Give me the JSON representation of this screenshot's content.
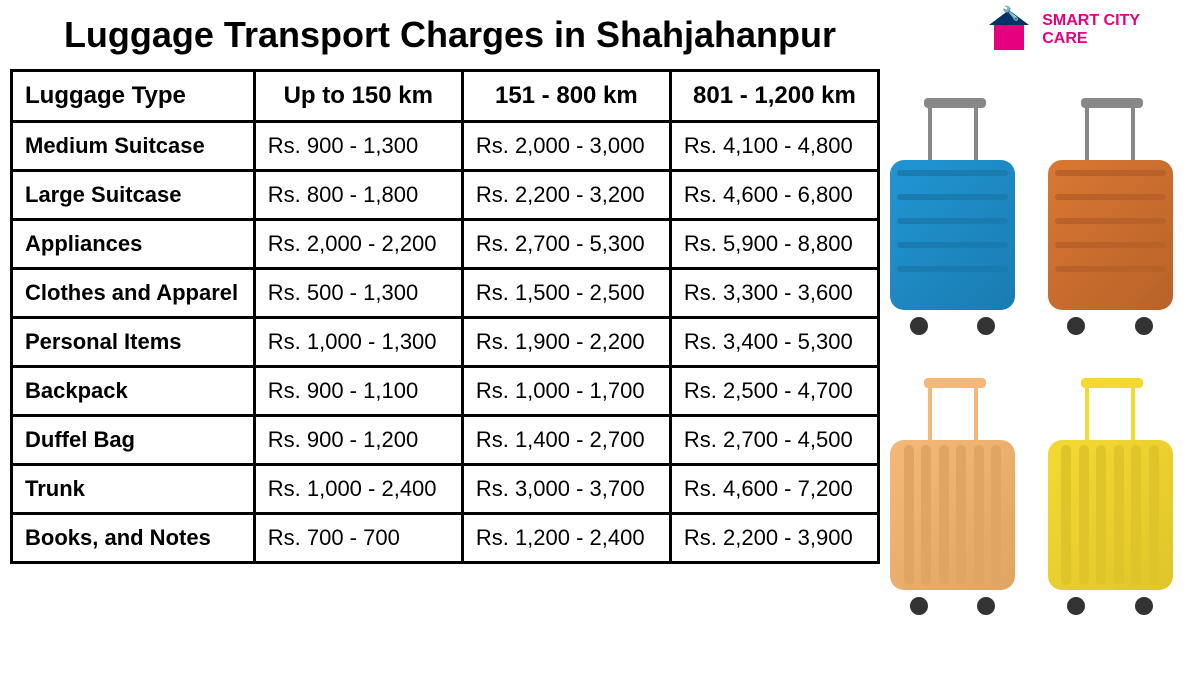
{
  "title": "Luggage Transport Charges in Shahjahanpur",
  "logo": {
    "text_line1": "SMART CITY",
    "text_line2": "CARE",
    "text_color": "#e6007e",
    "house_color": "#e6007e",
    "roof_color": "#003366"
  },
  "table": {
    "columns": [
      "Luggage Type",
      "Up to 150 km",
      "151 - 800 km",
      "801 - 1,200 km"
    ],
    "rows": [
      [
        "Medium Suitcase",
        "Rs. 900 - 1,300",
        "Rs. 2,000 - 3,000",
        "Rs. 4,100 - 4,800"
      ],
      [
        "Large Suitcase",
        "Rs. 800 - 1,800",
        "Rs. 2,200 - 3,200",
        "Rs. 4,600 - 6,800"
      ],
      [
        "Appliances",
        "Rs. 2,000 - 2,200",
        "Rs. 2,700 - 5,300",
        "Rs. 5,900 - 8,800"
      ],
      [
        "Clothes and Apparel",
        "Rs. 500 - 1,300",
        "Rs. 1,500 - 2,500",
        "Rs. 3,300 - 3,600"
      ],
      [
        "Personal Items",
        "Rs. 1,000 - 1,300",
        "Rs. 1,900 - 2,200",
        "Rs. 3,400 - 5,300"
      ],
      [
        "Backpack",
        "Rs. 900 - 1,100",
        "Rs. 1,000 - 1,700",
        "Rs. 2,500 - 4,700"
      ],
      [
        "Duffel Bag",
        "Rs. 900 - 1,200",
        "Rs. 1,400 - 2,700",
        "Rs. 2,700 - 4,500"
      ],
      [
        "Trunk",
        "Rs. 1,000 - 2,400",
        "Rs. 3,000 - 3,700",
        "Rs. 4,600 - 7,200"
      ],
      [
        "Books, and Notes",
        "Rs. 700 - 700",
        "Rs. 1,200 - 2,400",
        "Rs. 2,200 - 3,900"
      ]
    ],
    "border_color": "#000000",
    "header_fontsize": 24,
    "cell_fontsize": 22,
    "column_widths": [
      "28%",
      "24%",
      "24%",
      "24%"
    ]
  },
  "suitcases": [
    {
      "name": "blue-suitcase",
      "body_color": "#2196d4",
      "body_dark": "#1a7bb0",
      "handle_color": "#888888",
      "style": "horizontal-ridges"
    },
    {
      "name": "orange-suitcase",
      "body_color": "#d97833",
      "body_dark": "#b8622a",
      "handle_color": "#888888",
      "style": "horizontal-ridges"
    },
    {
      "name": "peach-suitcase",
      "body_color": "#f5b878",
      "body_dark": "#e0a562",
      "handle_color": "#f5b878",
      "style": "vertical-ridges"
    },
    {
      "name": "yellow-suitcase",
      "body_color": "#f5d932",
      "body_dark": "#e0c52a",
      "handle_color": "#f5d932",
      "style": "vertical-ridges"
    }
  ],
  "background_color": "#ffffff",
  "title_fontsize": 36
}
